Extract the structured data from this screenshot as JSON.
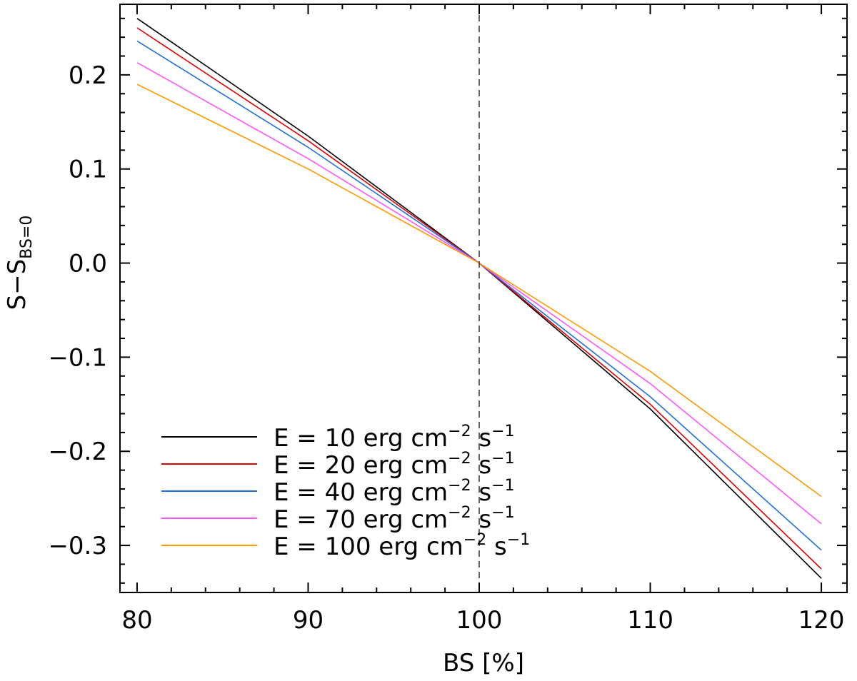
{
  "chart_data": {
    "type": "line",
    "title": "",
    "xlabel": "BS [%]",
    "ylabel": {
      "main": "S−S",
      "subscript": "BS=0"
    },
    "xlim": [
      79,
      121.5
    ],
    "ylim": [
      -0.35,
      0.275
    ],
    "xticks": [
      80,
      90,
      100,
      110,
      120
    ],
    "yticks": [
      0.2,
      0.1,
      0.0,
      -0.1,
      -0.2,
      -0.3
    ],
    "ytick_labels": [
      "0.2",
      "0.1",
      "0.0",
      "−0.1",
      "−0.2",
      "−0.3"
    ],
    "reference_line": {
      "x": 100,
      "style": "dashed"
    },
    "legend": {
      "position": "bottom-left"
    },
    "series": [
      {
        "name": "E = 10 erg cm",
        "energy": "10",
        "color": "#000000",
        "x": [
          80,
          90,
          100,
          110,
          120
        ],
        "values": [
          0.26,
          0.135,
          0.0,
          -0.155,
          -0.335
        ]
      },
      {
        "name": "E = 20 erg cm",
        "energy": "20",
        "color": "#e00000",
        "x": [
          80,
          90,
          100,
          110,
          120
        ],
        "values": [
          0.25,
          0.13,
          0.0,
          -0.15,
          -0.325
        ]
      },
      {
        "name": "E = 40 erg cm",
        "energy": "40",
        "color": "#1f6fe0",
        "x": [
          80,
          90,
          100,
          110,
          120
        ],
        "values": [
          0.236,
          0.123,
          0.0,
          -0.142,
          -0.305
        ]
      },
      {
        "name": "E = 70 erg cm",
        "energy": "70",
        "color": "#ff55ff",
        "x": [
          80,
          90,
          100,
          110,
          120
        ],
        "values": [
          0.213,
          0.111,
          0.0,
          -0.128,
          -0.277
        ]
      },
      {
        "name": "E = 100 erg cm",
        "energy": "100",
        "color": "#ff9a00",
        "x": [
          80,
          90,
          100,
          110,
          120
        ],
        "values": [
          0.19,
          0.1,
          0.0,
          -0.115,
          -0.248
        ]
      }
    ],
    "legend_entries": [
      {
        "prefix": "E = ",
        "value": "10",
        "unit1": " erg cm",
        "exp1": "−2",
        "unit2": " s",
        "exp2": "−1"
      },
      {
        "prefix": "E = ",
        "value": "20",
        "unit1": " erg cm",
        "exp1": "−2",
        "unit2": " s",
        "exp2": "−1"
      },
      {
        "prefix": "E = ",
        "value": "40",
        "unit1": " erg cm",
        "exp1": "−2",
        "unit2": " s",
        "exp2": "−1"
      },
      {
        "prefix": "E = ",
        "value": "70",
        "unit1": " erg cm",
        "exp1": "−2",
        "unit2": " s",
        "exp2": "−1"
      },
      {
        "prefix": "E = ",
        "value": "100",
        "unit1": " erg cm",
        "exp1": "−2",
        "unit2": " s",
        "exp2": "−1"
      }
    ]
  }
}
